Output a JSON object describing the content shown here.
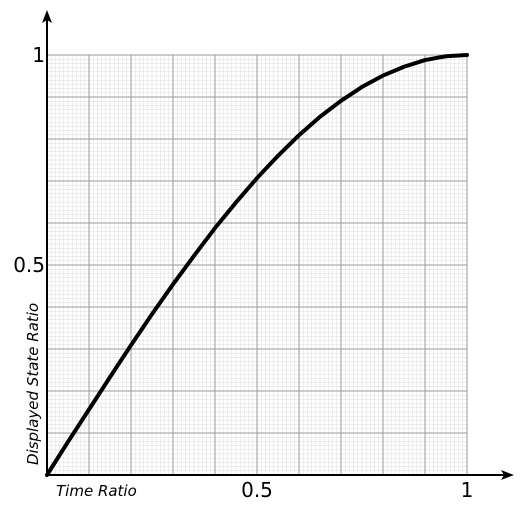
{
  "chart_data": {
    "type": "line",
    "xlabel": "Time Ratio",
    "ylabel": "Displayed State Ratio",
    "xlim": [
      0,
      1
    ],
    "ylim": [
      0,
      1
    ],
    "grid": true,
    "x_ticks": [
      {
        "value": 0.5,
        "label": "0.5"
      },
      {
        "value": 1,
        "label": "1"
      }
    ],
    "y_ticks": [
      {
        "value": 0.5,
        "label": "0.5"
      },
      {
        "value": 1,
        "label": "1"
      }
    ],
    "series": [
      {
        "color": "#000000",
        "x": [
          0,
          0.05,
          0.1,
          0.15,
          0.2,
          0.25,
          0.3,
          0.35,
          0.4,
          0.45,
          0.5,
          0.55,
          0.6,
          0.65,
          0.7,
          0.75,
          0.8,
          0.85,
          0.9,
          0.95,
          1
        ],
        "y": [
          0,
          0.079,
          0.156,
          0.233,
          0.309,
          0.383,
          0.454,
          0.522,
          0.588,
          0.649,
          0.707,
          0.76,
          0.809,
          0.853,
          0.891,
          0.924,
          0.951,
          0.972,
          0.988,
          0.997,
          1
        ]
      }
    ]
  }
}
